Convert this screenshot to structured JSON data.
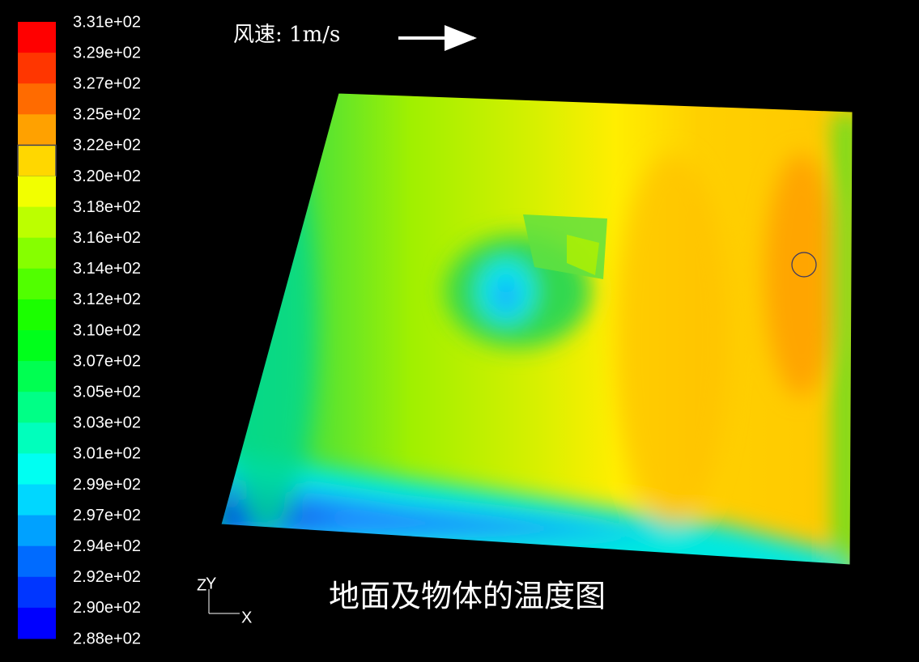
{
  "legend": {
    "labels": [
      "3.31e+02",
      "3.29e+02",
      "3.27e+02",
      "3.25e+02",
      "3.22e+02",
      "3.20e+02",
      "3.18e+02",
      "3.16e+02",
      "3.14e+02",
      "3.12e+02",
      "3.10e+02",
      "3.07e+02",
      "3.05e+02",
      "3.03e+02",
      "3.01e+02",
      "2.99e+02",
      "2.97e+02",
      "2.94e+02",
      "2.92e+02",
      "2.90e+02",
      "2.88e+02"
    ]
  },
  "wind_label": "风速: 1m/s",
  "title": "地面及物体的温度图",
  "axes": {
    "z": "Z",
    "y": "Y",
    "x": "X"
  }
}
